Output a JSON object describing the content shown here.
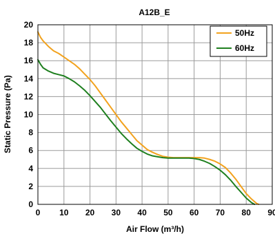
{
  "chart_data": {
    "type": "line",
    "title": "A12B_E",
    "xlabel": "Air Flow (m³/h)",
    "ylabel": "Static Pressure (Pa)",
    "xlim": [
      0,
      90
    ],
    "ylim": [
      0,
      20
    ],
    "xticks": [
      "0",
      "10",
      "20",
      "30",
      "40",
      "50",
      "60",
      "70",
      "80",
      "90"
    ],
    "yticks": [
      "0",
      "2",
      "4",
      "6",
      "8",
      "10",
      "12",
      "14",
      "16",
      "18",
      "20"
    ],
    "grid": true,
    "legend": "top-right",
    "series": [
      {
        "name": "50Hz",
        "color": "#F2A21D",
        "x": [
          0,
          1,
          2,
          4,
          6,
          8,
          10,
          12,
          14,
          16,
          18,
          20,
          22,
          24,
          26,
          28,
          30,
          32,
          34,
          36,
          38,
          40,
          42,
          44,
          46,
          48,
          50,
          52,
          54,
          56,
          58,
          60,
          62,
          64,
          66,
          68,
          70,
          72,
          74,
          76,
          78,
          80,
          82,
          84,
          84.8
        ],
        "y": [
          19.2,
          18.6,
          18.2,
          17.6,
          17.1,
          16.8,
          16.4,
          16.0,
          15.6,
          15.1,
          14.5,
          13.9,
          13.2,
          12.4,
          11.6,
          10.8,
          10.0,
          9.2,
          8.5,
          7.8,
          7.1,
          6.6,
          6.1,
          5.8,
          5.55,
          5.35,
          5.25,
          5.2,
          5.2,
          5.2,
          5.2,
          5.2,
          5.2,
          5.15,
          5.0,
          4.8,
          4.5,
          4.1,
          3.5,
          2.8,
          2.0,
          1.2,
          0.6,
          0.1,
          0.0
        ]
      },
      {
        "name": "60Hz",
        "color": "#1E7F1E",
        "x": [
          0,
          1,
          2,
          4,
          6,
          8,
          10,
          12,
          14,
          16,
          18,
          20,
          22,
          24,
          26,
          28,
          30,
          32,
          34,
          36,
          38,
          40,
          42,
          44,
          46,
          48,
          50,
          52,
          54,
          56,
          58,
          60,
          62,
          64,
          66,
          68,
          70,
          72,
          74,
          76,
          78,
          80,
          82,
          83.2
        ],
        "y": [
          16.1,
          15.6,
          15.2,
          14.85,
          14.6,
          14.45,
          14.3,
          14.0,
          13.65,
          13.2,
          12.7,
          12.1,
          11.45,
          10.8,
          10.05,
          9.3,
          8.6,
          7.9,
          7.3,
          6.75,
          6.25,
          5.9,
          5.6,
          5.4,
          5.3,
          5.2,
          5.15,
          5.15,
          5.15,
          5.15,
          5.15,
          5.1,
          5.0,
          4.8,
          4.55,
          4.2,
          3.8,
          3.3,
          2.7,
          2.0,
          1.35,
          0.7,
          0.2,
          0.0
        ]
      }
    ]
  }
}
